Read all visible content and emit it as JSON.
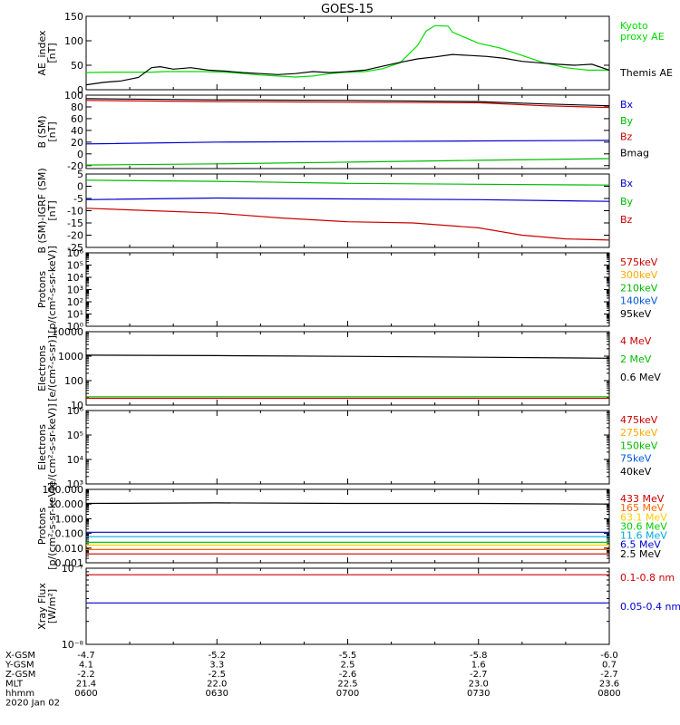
{
  "title": "GOES-15",
  "chart_data": [
    {
      "id": "ae",
      "type": "line",
      "ylabel": "AE_index\n[nT]",
      "ylim": [
        0,
        150
      ],
      "scale": "linear",
      "yticks": [
        0,
        50,
        100,
        150
      ],
      "ytick_labels": [
        "0",
        "50",
        "100",
        "150"
      ],
      "legend": [
        {
          "label": "Kyoto\nproxy AE",
          "color": "#00dd00"
        },
        {
          "label": "Themis AE",
          "color": "#000000"
        }
      ],
      "series": [
        {
          "name": "Kyoto proxy AE",
          "color": "#00dd00",
          "x": [
            "06:00",
            "06:05",
            "06:10",
            "06:15",
            "06:18",
            "06:22",
            "06:27",
            "06:32",
            "06:36",
            "06:40",
            "06:44",
            "06:48",
            "06:52",
            "06:56",
            "07:00",
            "07:04",
            "07:08",
            "07:12",
            "07:16",
            "07:18",
            "07:20",
            "07:23",
            "07:24",
            "07:26",
            "07:30",
            "07:35",
            "07:40",
            "07:45",
            "07:50",
            "07:55",
            "08:00"
          ],
          "y": [
            35,
            36,
            36,
            36,
            37,
            37,
            37,
            36,
            33,
            30,
            28,
            26,
            28,
            33,
            36,
            37,
            43,
            55,
            90,
            120,
            131,
            130,
            118,
            110,
            95,
            85,
            70,
            55,
            45,
            40,
            40
          ]
        },
        {
          "name": "Themis AE",
          "color": "#000000",
          "x": [
            "06:00",
            "06:04",
            "06:08",
            "06:12",
            "06:15",
            "06:17",
            "06:20",
            "06:24",
            "06:28",
            "06:32",
            "06:36",
            "06:40",
            "06:44",
            "06:48",
            "06:52",
            "06:56",
            "07:00",
            "07:04",
            "07:08",
            "07:12",
            "07:16",
            "07:20",
            "07:24",
            "07:28",
            "07:32",
            "07:36",
            "07:40",
            "07:44",
            "07:48",
            "07:52",
            "07:56",
            "08:00"
          ],
          "y": [
            10,
            15,
            18,
            25,
            45,
            47,
            42,
            45,
            40,
            38,
            35,
            33,
            31,
            33,
            37,
            35,
            37,
            40,
            48,
            56,
            63,
            67,
            72,
            70,
            68,
            64,
            58,
            55,
            52,
            50,
            52,
            40
          ]
        }
      ]
    },
    {
      "id": "bsm",
      "type": "line",
      "ylabel": "B (SM)\n[nT]",
      "ylim": [
        -25,
        100
      ],
      "scale": "linear",
      "yticks": [
        -20,
        0,
        20,
        40,
        60,
        80,
        100
      ],
      "ytick_labels": [
        "-20",
        "0",
        "20",
        "40",
        "60",
        "80",
        "100"
      ],
      "legend": [
        {
          "label": "Bx",
          "color": "#0000cc"
        },
        {
          "label": "By",
          "color": "#00bb00"
        },
        {
          "label": "Bz",
          "color": "#cc0000"
        },
        {
          "label": "Bmag",
          "color": "#000000"
        }
      ],
      "series": [
        {
          "name": "Bx",
          "color": "#0000cc",
          "x": [
            "06:00",
            "06:30",
            "07:00",
            "07:30",
            "08:00"
          ],
          "y": [
            17,
            20,
            21,
            22,
            23
          ]
        },
        {
          "name": "By",
          "color": "#00bb00",
          "x": [
            "06:00",
            "06:30",
            "07:00",
            "07:30",
            "08:00"
          ],
          "y": [
            -19,
            -17,
            -14,
            -11,
            -8
          ]
        },
        {
          "name": "Bz",
          "color": "#cc0000",
          "x": [
            "06:00",
            "06:30",
            "07:00",
            "07:30",
            "07:45",
            "08:00"
          ],
          "y": [
            91,
            89,
            88,
            87,
            82,
            79
          ]
        },
        {
          "name": "Bmag",
          "color": "#000000",
          "x": [
            "06:00",
            "06:30",
            "07:00",
            "07:30",
            "07:45",
            "08:00"
          ],
          "y": [
            94,
            92,
            91,
            89,
            85,
            82
          ]
        }
      ]
    },
    {
      "id": "bigrf",
      "type": "line",
      "ylabel": "B (SM)-IGRF (SM)\n[nT]",
      "ylim": [
        -25,
        5
      ],
      "scale": "linear",
      "yticks": [
        -25,
        -20,
        -15,
        -10,
        -5,
        0,
        5
      ],
      "ytick_labels": [
        "-25",
        "-20",
        "-15",
        "-10",
        "-5",
        "0",
        "5"
      ],
      "legend": [
        {
          "label": "Bx",
          "color": "#0000cc"
        },
        {
          "label": "By",
          "color": "#00bb00"
        },
        {
          "label": "Bz",
          "color": "#cc0000"
        }
      ],
      "series": [
        {
          "name": "Bx",
          "color": "#0000cc",
          "x": [
            "06:00",
            "06:30",
            "07:00",
            "07:30",
            "08:00"
          ],
          "y": [
            -5.5,
            -4.8,
            -5.2,
            -5.5,
            -6.2
          ]
        },
        {
          "name": "By",
          "color": "#00bb00",
          "x": [
            "06:00",
            "06:30",
            "07:00",
            "07:30",
            "08:00"
          ],
          "y": [
            2.5,
            2.0,
            1.2,
            0.8,
            0.5
          ]
        },
        {
          "name": "Bz",
          "color": "#cc0000",
          "x": [
            "06:00",
            "06:15",
            "06:30",
            "06:45",
            "07:00",
            "07:15",
            "07:30",
            "07:40",
            "07:50",
            "08:00"
          ],
          "y": [
            -9,
            -10,
            -11,
            -13,
            -14.5,
            -15,
            -17,
            -20,
            -21.5,
            -22
          ]
        }
      ]
    },
    {
      "id": "protons-low",
      "type": "line",
      "ylabel": "Protons\n[p/(cm²-s-sr-keV)]",
      "ylim": [
        1,
        1000000
      ],
      "scale": "log",
      "yticks": [
        1,
        10,
        100,
        1000,
        10000,
        100000,
        1000000
      ],
      "ytick_labels": [
        "10⁰",
        "10¹",
        "10²",
        "10³",
        "10⁴",
        "10⁵",
        "10⁶"
      ],
      "legend": [
        {
          "label": "575keV",
          "color": "#cc0000"
        },
        {
          "label": "300keV",
          "color": "#ffaa00"
        },
        {
          "label": "210keV",
          "color": "#00bb00"
        },
        {
          "label": "140keV",
          "color": "#0055dd"
        },
        {
          "label": "95keV",
          "color": "#000000"
        }
      ],
      "series": []
    },
    {
      "id": "electrons-high",
      "type": "line",
      "ylabel": "Electrons\n[e/(cm²-s-sr)]",
      "ylim": [
        10,
        10000
      ],
      "scale": "log",
      "yticks": [
        10,
        100,
        1000,
        10000
      ],
      "ytick_labels": [
        "10",
        "100",
        "1000",
        "10000"
      ],
      "legend": [
        {
          "label": "4 MeV",
          "color": "#cc0000"
        },
        {
          "label": "2 MeV",
          "color": "#00bb00"
        },
        {
          "label": "0.6 MeV",
          "color": "#000000"
        }
      ],
      "series": [
        {
          "name": "0.6 MeV",
          "color": "#000000",
          "x": [
            "06:00",
            "06:30",
            "07:00",
            "07:30",
            "08:00"
          ],
          "y": [
            1100,
            1050,
            980,
            900,
            820
          ]
        },
        {
          "name": "2 MeV",
          "color": "#00bb00",
          "x": [
            "06:00",
            "06:30",
            "07:00",
            "07:30",
            "08:00"
          ],
          "y": [
            22,
            22,
            22,
            22,
            22
          ]
        },
        {
          "name": "4 MeV",
          "color": "#cc0000",
          "x": [
            "06:00",
            "06:30",
            "07:00",
            "07:30",
            "08:00"
          ],
          "y": [
            19,
            19,
            19,
            19,
            19
          ]
        }
      ]
    },
    {
      "id": "electrons-low",
      "type": "line",
      "ylabel": "Electrons\n[e/(cm²-s-sr-keV)]",
      "ylim": [
        1000,
        1000000
      ],
      "scale": "log",
      "yticks": [
        1000,
        10000,
        100000,
        1000000
      ],
      "ytick_labels": [
        "10³",
        "10⁴",
        "10⁵",
        "10⁶"
      ],
      "legend": [
        {
          "label": "475keV",
          "color": "#cc0000"
        },
        {
          "label": "275keV",
          "color": "#ffaa00"
        },
        {
          "label": "150keV",
          "color": "#00bb00"
        },
        {
          "label": "75keV",
          "color": "#0055dd"
        },
        {
          "label": "40keV",
          "color": "#000000"
        }
      ],
      "series": []
    },
    {
      "id": "protons-high",
      "type": "line",
      "ylabel": "Protons\n[p/(cm²-s-sr-keV)]",
      "ylim": [
        0.001,
        100
      ],
      "scale": "log",
      "yticks": [
        0.001,
        0.01,
        0.1,
        1,
        10,
        100
      ],
      "ytick_labels": [
        "0.001",
        "0.010",
        "0.100",
        "1.000",
        "10.000",
        "100.000"
      ],
      "legend": [
        {
          "label": "433 MeV",
          "color": "#cc0000"
        },
        {
          "label": "165 MeV",
          "color": "#ff6600"
        },
        {
          "label": "63.1 MeV",
          "color": "#ffcc00"
        },
        {
          "label": "30.6 MeV",
          "color": "#00cc00"
        },
        {
          "label": "11.6 MeV",
          "color": "#00aadd"
        },
        {
          "label": "6.5 MeV",
          "color": "#0000cc"
        },
        {
          "label": "2.5 MeV",
          "color": "#000000"
        }
      ],
      "series": [
        {
          "name": "2.5 MeV",
          "color": "#000000",
          "x": [
            "06:00",
            "06:30",
            "07:00",
            "07:30",
            "08:00"
          ],
          "y": [
            11,
            12,
            11,
            11,
            10
          ]
        },
        {
          "name": "6.5 MeV",
          "color": "#0000cc",
          "x": [
            "06:00",
            "06:30",
            "07:00",
            "07:30",
            "08:00"
          ],
          "y": [
            0.12,
            0.12,
            0.12,
            0.12,
            0.12
          ]
        },
        {
          "name": "11.6 MeV",
          "color": "#00aadd",
          "x": [
            "06:00",
            "06:30",
            "07:00",
            "07:30",
            "08:00"
          ],
          "y": [
            0.06,
            0.06,
            0.06,
            0.06,
            0.06
          ]
        },
        {
          "name": "30.6 MeV",
          "color": "#00cc00",
          "x": [
            "06:00",
            "06:30",
            "07:00",
            "07:30",
            "08:00"
          ],
          "y": [
            0.025,
            0.025,
            0.025,
            0.025,
            0.025
          ]
        },
        {
          "name": "63.1 MeV",
          "color": "#ffcc00",
          "x": [
            "06:00",
            "06:30",
            "07:00",
            "07:30",
            "08:00"
          ],
          "y": [
            0.016,
            0.016,
            0.016,
            0.016,
            0.016
          ]
        },
        {
          "name": "165 MeV",
          "color": "#ff6600",
          "x": [
            "06:00",
            "06:30",
            "07:00",
            "07:30",
            "08:00"
          ],
          "y": [
            0.008,
            0.008,
            0.008,
            0.008,
            0.008
          ]
        },
        {
          "name": "433 MeV",
          "color": "#cc0000",
          "x": [
            "06:00",
            "06:30",
            "07:00",
            "07:30",
            "08:00"
          ],
          "y": [
            0.004,
            0.004,
            0.004,
            0.004,
            0.004
          ]
        }
      ]
    },
    {
      "id": "xray",
      "type": "line",
      "ylabel": "Xray Flux\n[W/m²]",
      "ylim": [
        1e-08,
        1e-07
      ],
      "scale": "log",
      "yticks": [
        1e-08,
        1e-07
      ],
      "ytick_labels": [
        "10⁻⁸",
        "10⁻⁷"
      ],
      "legend": [
        {
          "label": "0.1-0.8 nm",
          "color": "#cc0000"
        },
        {
          "label": "0.05-0.4 nm",
          "color": "#0000cc"
        }
      ],
      "series": [
        {
          "name": "0.1-0.8 nm",
          "color": "#cc0000",
          "x": [
            "06:00",
            "06:30",
            "07:00",
            "07:30",
            "08:00"
          ],
          "y": [
            8.2e-08,
            8.2e-08,
            8.2e-08,
            8.2e-08,
            8.2e-08
          ]
        },
        {
          "name": "0.05-0.4 nm",
          "color": "#0000cc",
          "x": [
            "06:00",
            "06:30",
            "07:00",
            "07:30",
            "08:00"
          ],
          "y": [
            3.5e-08,
            3.5e-08,
            3.5e-08,
            3.5e-08,
            3.5e-08
          ]
        }
      ]
    }
  ],
  "x_axis": {
    "range": [
      "06:00",
      "08:00"
    ],
    "major_ticks": [
      "06:00",
      "06:30",
      "07:00",
      "07:30",
      "08:00"
    ],
    "rows": [
      {
        "label": "X-GSM",
        "values": [
          "-4.7",
          "-5.2",
          "-5.5",
          "-5.8",
          "-6.0"
        ]
      },
      {
        "label": "Y-GSM",
        "values": [
          "4.1",
          "3.3",
          "2.5",
          "1.6",
          "0.7"
        ]
      },
      {
        "label": "Z-GSM",
        "values": [
          "-2.2",
          "-2.5",
          "-2.6",
          "-2.7",
          "-2.7"
        ]
      },
      {
        "label": "MLT",
        "values": [
          "21.4",
          "22.0",
          "22.5",
          "23.0",
          "23.6"
        ]
      },
      {
        "label": "hhmm",
        "values": [
          "0600",
          "0630",
          "0700",
          "0730",
          "0800"
        ]
      }
    ],
    "date": "2020 Jan 02"
  }
}
